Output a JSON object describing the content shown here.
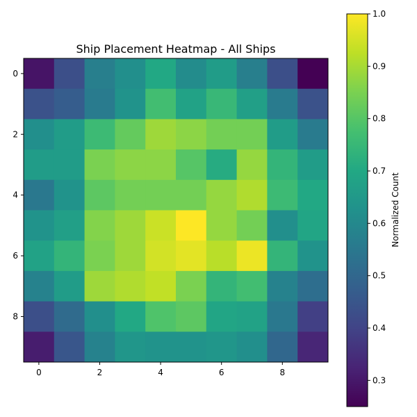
{
  "chart_data": {
    "type": "heatmap",
    "title": "Ship Placement Heatmap - All Ships",
    "xlabel": "",
    "ylabel": "",
    "x_ticks": [
      0,
      2,
      4,
      6,
      8
    ],
    "y_ticks": [
      0,
      2,
      4,
      6,
      8
    ],
    "rows": 10,
    "cols": 10,
    "values": [
      [
        0.29,
        0.43,
        0.57,
        0.62,
        0.7,
        0.61,
        0.66,
        0.57,
        0.43,
        0.25
      ],
      [
        0.44,
        0.47,
        0.56,
        0.63,
        0.77,
        0.68,
        0.75,
        0.67,
        0.56,
        0.44
      ],
      [
        0.62,
        0.66,
        0.76,
        0.82,
        0.89,
        0.87,
        0.84,
        0.84,
        0.66,
        0.56
      ],
      [
        0.66,
        0.66,
        0.85,
        0.87,
        0.87,
        0.8,
        0.71,
        0.88,
        0.74,
        0.66
      ],
      [
        0.55,
        0.63,
        0.81,
        0.84,
        0.84,
        0.84,
        0.88,
        0.91,
        0.76,
        0.7
      ],
      [
        0.63,
        0.67,
        0.86,
        0.89,
        0.94,
        1.0,
        0.88,
        0.84,
        0.62,
        0.69
      ],
      [
        0.68,
        0.74,
        0.85,
        0.89,
        0.95,
        0.97,
        0.92,
        0.98,
        0.74,
        0.63
      ],
      [
        0.58,
        0.66,
        0.89,
        0.91,
        0.93,
        0.85,
        0.74,
        0.77,
        0.58,
        0.52
      ],
      [
        0.43,
        0.51,
        0.62,
        0.7,
        0.79,
        0.81,
        0.69,
        0.68,
        0.55,
        0.39
      ],
      [
        0.31,
        0.45,
        0.58,
        0.64,
        0.63,
        0.63,
        0.64,
        0.62,
        0.5,
        0.33
      ]
    ],
    "colormap": "viridis",
    "colorbar": {
      "label": "Normalized Count",
      "min": 0.25,
      "max": 1.0,
      "ticks": [
        "0.3",
        "0.4",
        "0.5",
        "0.6",
        "0.7",
        "0.8",
        "0.9",
        "1.0"
      ]
    },
    "grid": false,
    "legend": "none"
  }
}
